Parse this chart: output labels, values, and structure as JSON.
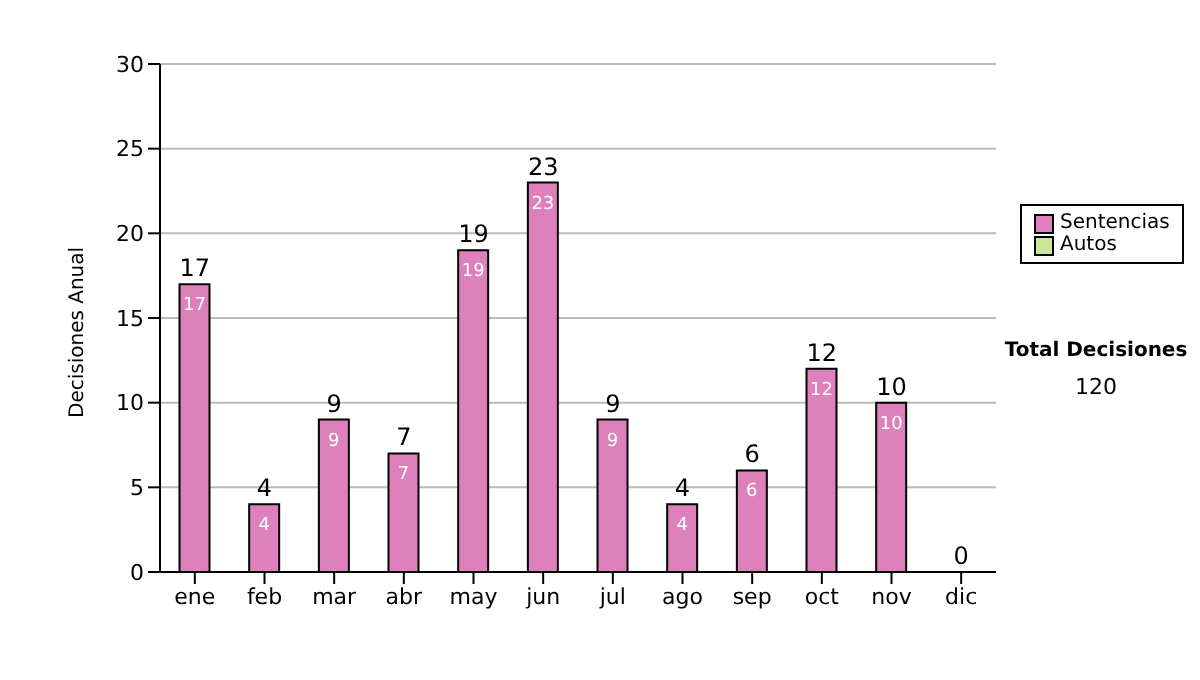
{
  "chart_data": {
    "type": "bar",
    "stacked": true,
    "ylabel": "Decisiones Anual",
    "categories": [
      "ene",
      "feb",
      "mar",
      "abr",
      "may",
      "jun",
      "jul",
      "ago",
      "sep",
      "oct",
      "nov",
      "dic"
    ],
    "series": [
      {
        "name": "Sentencias",
        "color": "#dd80bb",
        "values": [
          17,
          4,
          9,
          7,
          19,
          23,
          9,
          4,
          6,
          12,
          10,
          0
        ],
        "value_labels": [
          "17",
          "4",
          "9",
          "7",
          "19",
          "23",
          "9",
          "4",
          "6",
          "12",
          "10",
          null
        ]
      },
      {
        "name": "Autos",
        "color": "#cce699",
        "values": [
          0,
          0,
          0,
          0,
          0,
          0,
          0,
          0,
          0,
          0,
          0,
          0
        ]
      }
    ],
    "totals": [
      "17",
      "4",
      "9",
      "7",
      "19",
      "23",
      "9",
      "4",
      "6",
      "12",
      "10",
      "0"
    ],
    "ylim": [
      0,
      30
    ],
    "yticks": [
      0,
      5,
      10,
      15,
      20,
      25,
      30
    ],
    "grid": "y",
    "legend": "right",
    "annotations": [
      "Total Decisiones",
      "120"
    ]
  }
}
